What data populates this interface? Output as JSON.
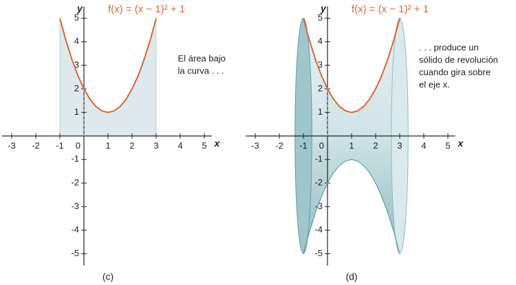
{
  "chart_data": [
    {
      "type": "area",
      "title": "f(x) = (x − 1)² + 1",
      "x_label": "x",
      "y_label": "y",
      "annotation": [
        "El área bajo",
        "la curva . . ."
      ],
      "caption": "(c)",
      "x": [
        -1,
        -0.75,
        -0.5,
        -0.25,
        0,
        0.25,
        0.5,
        0.75,
        1,
        1.25,
        1.5,
        1.75,
        2,
        2.25,
        2.5,
        2.75,
        3
      ],
      "series": [
        {
          "color": "#e0662e",
          "values": [
            5,
            4.0625,
            3.25,
            2.5625,
            2,
            1.5625,
            1.25,
            1.0625,
            1,
            1.0625,
            1.25,
            1.5625,
            2,
            2.5625,
            3.25,
            4.0625,
            5
          ]
        }
      ],
      "fill": "#dde9ec",
      "xlim": [
        -3.4,
        5.3
      ],
      "ylim": [
        -5.5,
        5.5
      ],
      "xticks": [
        -3,
        -2,
        -1,
        0,
        1,
        2,
        3,
        4,
        5
      ],
      "yticks": [
        -5,
        -4,
        -3,
        -2,
        -1,
        1,
        2,
        3,
        4,
        5
      ]
    },
    {
      "type": "solid",
      "title": "f(x) = (x − 1)² + 1",
      "x_label": "x",
      "y_label": "y",
      "annotation": [
        ". . . produce un",
        "sólido de revolución",
        "cuando gira sobre",
        "el eje x."
      ],
      "caption": "(d)",
      "x": [
        -1,
        -0.75,
        -0.5,
        -0.25,
        0,
        0.25,
        0.5,
        0.75,
        1,
        1.25,
        1.5,
        1.75,
        2,
        2.25,
        2.5,
        2.75,
        3
      ],
      "series": [
        {
          "color": "#e0662e",
          "values": [
            5,
            4.0625,
            3.25,
            2.5625,
            2,
            1.5625,
            1.25,
            1.0625,
            1,
            1.0625,
            1.25,
            1.5625,
            2,
            2.5625,
            3.25,
            4.0625,
            5
          ]
        },
        {
          "color": "#5f9ea3",
          "values": [
            -5,
            -4.0625,
            -3.25,
            -2.5625,
            -2,
            -1.5625,
            -1.25,
            -1.0625,
            -1,
            -1.0625,
            -1.25,
            -1.5625,
            -2,
            -2.5625,
            -3.25,
            -4.0625,
            -5
          ]
        }
      ],
      "fill": "#cfe3e6",
      "xlim": [
        -3.4,
        5.3
      ],
      "ylim": [
        -5.5,
        5.5
      ],
      "xticks": [
        -3,
        -2,
        -1,
        0,
        1,
        2,
        3,
        4,
        5
      ],
      "yticks": [
        -5,
        -4,
        -3,
        -2,
        -1,
        1,
        2,
        3,
        4,
        5
      ]
    }
  ]
}
